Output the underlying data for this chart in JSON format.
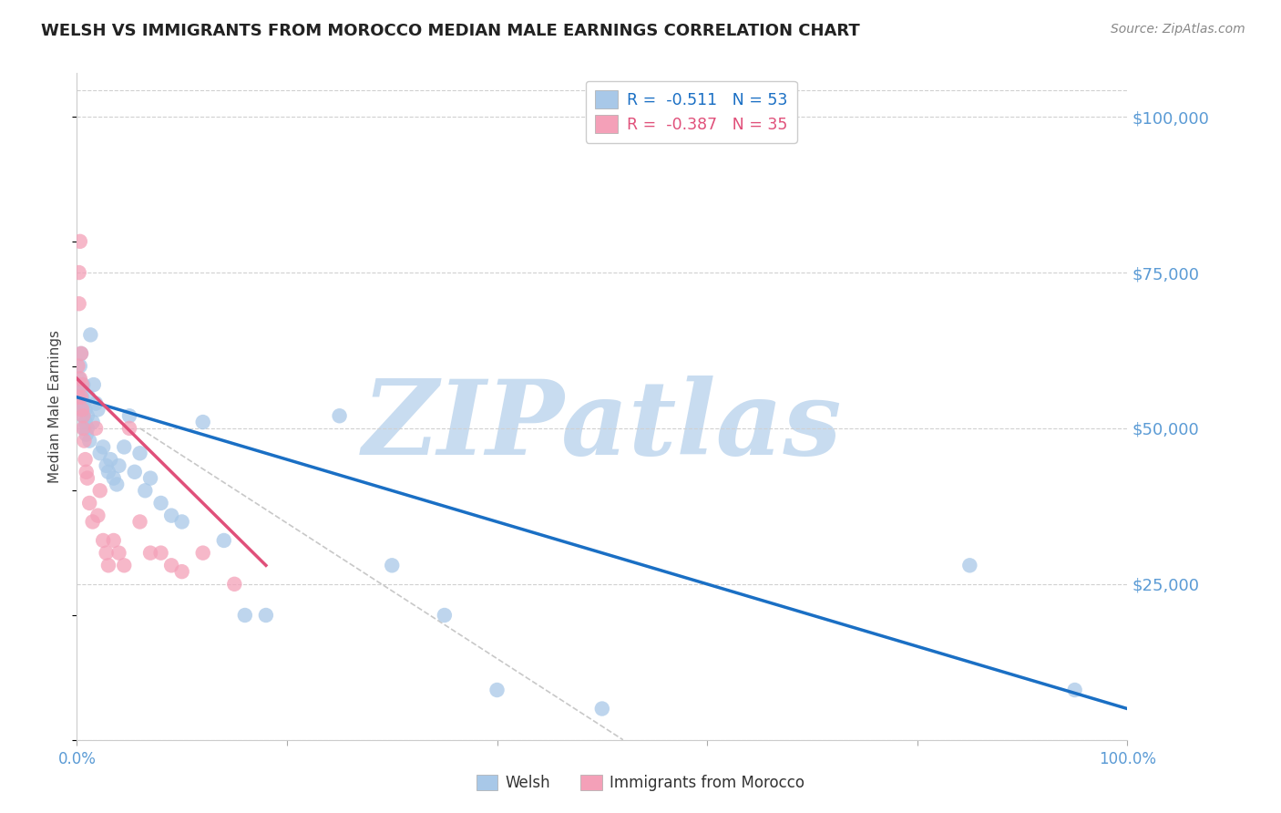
{
  "title": "WELSH VS IMMIGRANTS FROM MOROCCO MEDIAN MALE EARNINGS CORRELATION CHART",
  "source": "Source: ZipAtlas.com",
  "ylabel": "Median Male Earnings",
  "yticks": [
    0,
    25000,
    50000,
    75000,
    100000
  ],
  "ytick_labels": [
    "",
    "$25,000",
    "$50,000",
    "$75,000",
    "$100,000"
  ],
  "xmin": 0.0,
  "xmax": 1.0,
  "ymin": 0,
  "ymax": 107000,
  "watermark": "ZIPatlas",
  "welsh_r": "-0.511",
  "welsh_n": "53",
  "morocco_r": "-0.387",
  "morocco_n": "35",
  "welsh_x": [
    0.001,
    0.002,
    0.002,
    0.003,
    0.003,
    0.004,
    0.004,
    0.005,
    0.005,
    0.006,
    0.006,
    0.007,
    0.007,
    0.008,
    0.008,
    0.009,
    0.01,
    0.01,
    0.011,
    0.012,
    0.013,
    0.015,
    0.016,
    0.018,
    0.02,
    0.022,
    0.025,
    0.028,
    0.03,
    0.032,
    0.035,
    0.038,
    0.04,
    0.045,
    0.05,
    0.055,
    0.06,
    0.065,
    0.07,
    0.08,
    0.09,
    0.1,
    0.12,
    0.14,
    0.16,
    0.18,
    0.25,
    0.3,
    0.35,
    0.85,
    0.95,
    0.4,
    0.5
  ],
  "welsh_y": [
    55000,
    58000,
    57000,
    56000,
    60000,
    54000,
    62000,
    53000,
    55000,
    52000,
    57000,
    54000,
    50000,
    51000,
    53000,
    49000,
    52000,
    50000,
    55000,
    48000,
    65000,
    51000,
    57000,
    54000,
    53000,
    46000,
    47000,
    44000,
    43000,
    45000,
    42000,
    41000,
    44000,
    47000,
    52000,
    43000,
    46000,
    40000,
    42000,
    38000,
    36000,
    35000,
    51000,
    32000,
    20000,
    20000,
    52000,
    28000,
    20000,
    28000,
    8000,
    8000,
    5000
  ],
  "morocco_x": [
    0.001,
    0.001,
    0.002,
    0.002,
    0.003,
    0.003,
    0.004,
    0.004,
    0.005,
    0.005,
    0.006,
    0.006,
    0.007,
    0.008,
    0.009,
    0.01,
    0.012,
    0.015,
    0.018,
    0.02,
    0.022,
    0.025,
    0.028,
    0.03,
    0.035,
    0.04,
    0.045,
    0.05,
    0.06,
    0.07,
    0.08,
    0.09,
    0.1,
    0.12,
    0.15
  ],
  "morocco_y": [
    55000,
    60000,
    70000,
    75000,
    58000,
    80000,
    62000,
    55000,
    53000,
    57000,
    52000,
    50000,
    48000,
    45000,
    43000,
    42000,
    38000,
    35000,
    50000,
    36000,
    40000,
    32000,
    30000,
    28000,
    32000,
    30000,
    28000,
    50000,
    35000,
    30000,
    30000,
    28000,
    27000,
    30000,
    25000
  ],
  "blue_line_x0": 0.0,
  "blue_line_x1": 1.0,
  "blue_line_y0": 55000,
  "blue_line_y1": 5000,
  "pink_line_x0": 0.0,
  "pink_line_x1": 0.18,
  "pink_line_y0": 58000,
  "pink_line_y1": 28000,
  "diag_line_x0": 0.06,
  "diag_line_x1": 0.52,
  "diag_line_y0": 50000,
  "diag_line_y1": 0,
  "blue_scatter_color": "#a8c8e8",
  "pink_scatter_color": "#f4a0b8",
  "blue_line_color": "#1a6fc4",
  "pink_line_color": "#e0507a",
  "diag_line_color": "#c8c8c8",
  "grid_color": "#d0d0d0",
  "tick_label_color": "#5b9bd5",
  "title_color": "#222222",
  "source_color": "#888888",
  "ylabel_color": "#444444",
  "watermark_color": "#c8dcf0",
  "background_color": "#ffffff",
  "dot_size": 140,
  "legend_frame_color": "#cccccc"
}
